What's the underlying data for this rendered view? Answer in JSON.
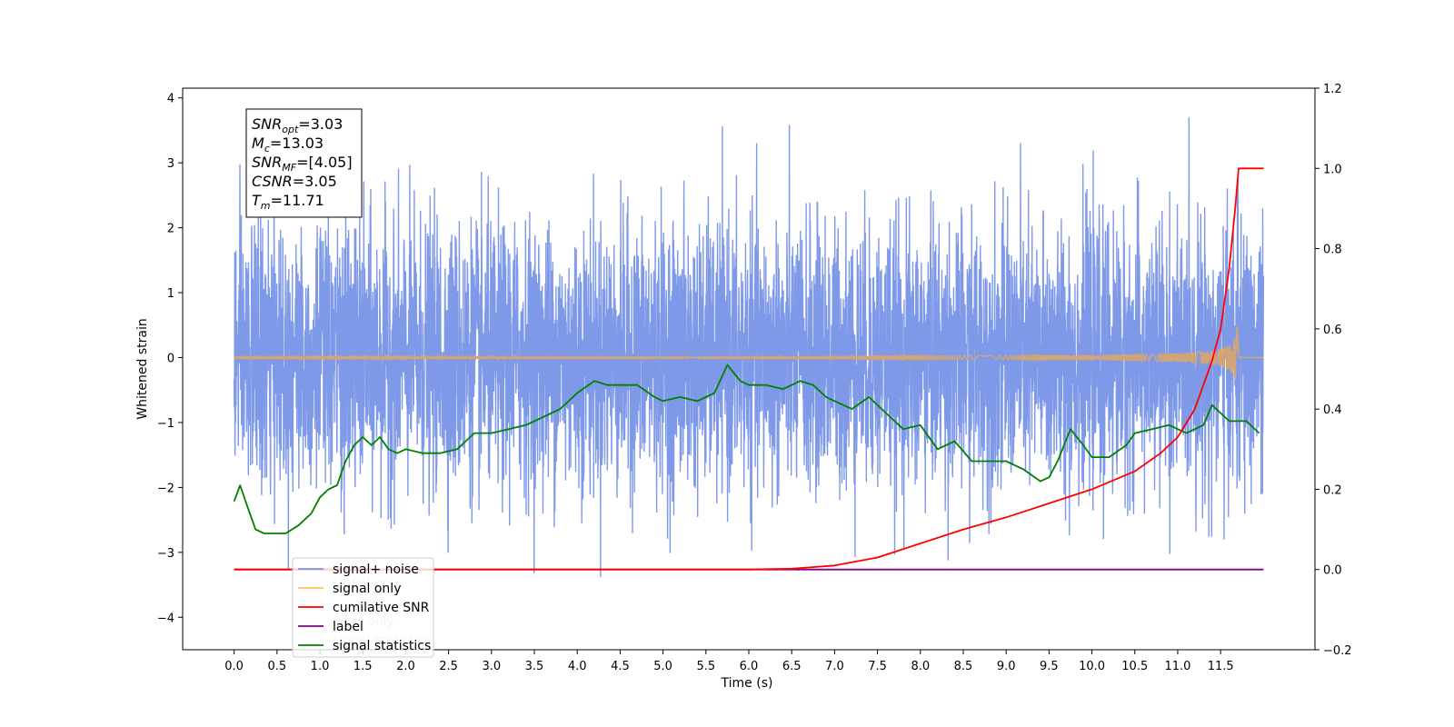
{
  "chart_data": {
    "type": "line",
    "xlabel": "Time (s)",
    "ylabel": "Whitened strain",
    "xlim": [
      -0.6,
      12.6
    ],
    "ylim": [
      -4.5,
      4.15
    ],
    "y2lim": [
      -0.2,
      1.2
    ],
    "x_ticks": [
      "0.0",
      "0.5",
      "1.0",
      "1.5",
      "2.0",
      "2.5",
      "3.0",
      "3.5",
      "4.0",
      "4.5",
      "5.0",
      "5.5",
      "6.0",
      "6.5",
      "7.0",
      "7.5",
      "8.0",
      "8.5",
      "9.0",
      "9.5",
      "10.0",
      "10.5",
      "11.0",
      "11.5"
    ],
    "y_ticks": [
      "4",
      "3",
      "2",
      "1",
      "0",
      "−1",
      "−2",
      "−3",
      "−4"
    ],
    "y2_ticks": [
      "1.2",
      "1.0",
      "0.8",
      "0.6",
      "0.4",
      "0.2",
      "0.0",
      "−0.2"
    ],
    "annotation": {
      "lines": [
        {
          "base": "SNR",
          "sub": "opt",
          "rest": "=3.03"
        },
        {
          "base": "M",
          "sub": "c",
          "rest": "=13.03"
        },
        {
          "base": "SNR",
          "sub": "MF",
          "rest": "=[4.05]"
        },
        {
          "base": "CSNR",
          "sub": "",
          "rest": "=3.05"
        },
        {
          "base": "T",
          "sub": "m",
          "rest": "=11.71"
        }
      ]
    },
    "legend": {
      "placement": "lower-left",
      "entries": [
        {
          "label": "signal+ noise",
          "color": "#7893e8"
        },
        {
          "label": "signal only",
          "color": "#ffc35a"
        },
        {
          "label": "cumilative SNR",
          "color": "#ff0000"
        },
        {
          "label": "label",
          "color": "#800080"
        },
        {
          "label": "signal statistics",
          "color": "#008000"
        }
      ],
      "ghost_labels": [
        "signal only",
        "label only",
        "signal statistics"
      ]
    },
    "series": [
      {
        "name": "signal+ noise",
        "axis": "left",
        "color": "#7893e8",
        "x_range": [
          0.0,
          12.0
        ],
        "mean": 0.0,
        "std": 1.0,
        "min": -4.1,
        "max": 3.7
      },
      {
        "name": "signal only",
        "axis": "left",
        "color": "#d4a574",
        "x_range": [
          0.0,
          12.0
        ],
        "merger_time": 11.71,
        "peak_amplitude": 0.5
      },
      {
        "name": "cumilative SNR",
        "axis": "right",
        "x": [
          0.0,
          6.0,
          6.5,
          7.0,
          7.5,
          8.0,
          8.5,
          9.0,
          9.5,
          10.0,
          10.5,
          10.8,
          11.0,
          11.2,
          11.4,
          11.5,
          11.6,
          11.67,
          11.71,
          12.0
        ],
        "y": [
          0.0,
          0.0,
          0.002,
          0.01,
          0.03,
          0.065,
          0.1,
          0.13,
          0.165,
          0.2,
          0.245,
          0.29,
          0.33,
          0.4,
          0.52,
          0.6,
          0.75,
          0.9,
          1.0,
          1.0
        ]
      },
      {
        "name": "label",
        "axis": "right",
        "x": [
          0.0,
          12.0
        ],
        "y": [
          0.0,
          0.0
        ]
      },
      {
        "name": "signal statistics",
        "axis": "right",
        "x": [
          0.0,
          0.07,
          0.15,
          0.25,
          0.35,
          0.5,
          0.6,
          0.75,
          0.9,
          1.0,
          1.1,
          1.2,
          1.3,
          1.4,
          1.5,
          1.6,
          1.7,
          1.8,
          1.9,
          2.0,
          2.2,
          2.4,
          2.6,
          2.8,
          3.0,
          3.2,
          3.4,
          3.6,
          3.8,
          4.0,
          4.2,
          4.35,
          4.5,
          4.7,
          4.9,
          5.0,
          5.2,
          5.4,
          5.6,
          5.75,
          5.9,
          6.0,
          6.2,
          6.4,
          6.6,
          6.75,
          6.9,
          7.0,
          7.2,
          7.4,
          7.6,
          7.8,
          8.0,
          8.2,
          8.4,
          8.6,
          8.8,
          9.0,
          9.2,
          9.4,
          9.5,
          9.6,
          9.75,
          9.9,
          10.0,
          10.2,
          10.4,
          10.5,
          10.7,
          10.9,
          11.1,
          11.3,
          11.4,
          11.6,
          11.8,
          11.95
        ],
        "y": [
          0.17,
          0.21,
          0.16,
          0.1,
          0.09,
          0.09,
          0.09,
          0.11,
          0.14,
          0.18,
          0.2,
          0.21,
          0.27,
          0.31,
          0.33,
          0.31,
          0.33,
          0.3,
          0.29,
          0.3,
          0.29,
          0.29,
          0.3,
          0.34,
          0.34,
          0.35,
          0.36,
          0.38,
          0.4,
          0.44,
          0.47,
          0.46,
          0.46,
          0.46,
          0.43,
          0.42,
          0.43,
          0.42,
          0.44,
          0.51,
          0.47,
          0.46,
          0.46,
          0.45,
          0.47,
          0.46,
          0.43,
          0.42,
          0.4,
          0.43,
          0.39,
          0.35,
          0.36,
          0.3,
          0.32,
          0.27,
          0.27,
          0.27,
          0.25,
          0.22,
          0.23,
          0.27,
          0.35,
          0.31,
          0.28,
          0.28,
          0.31,
          0.34,
          0.35,
          0.36,
          0.34,
          0.36,
          0.41,
          0.37,
          0.37,
          0.34
        ]
      }
    ],
    "grid": false
  }
}
